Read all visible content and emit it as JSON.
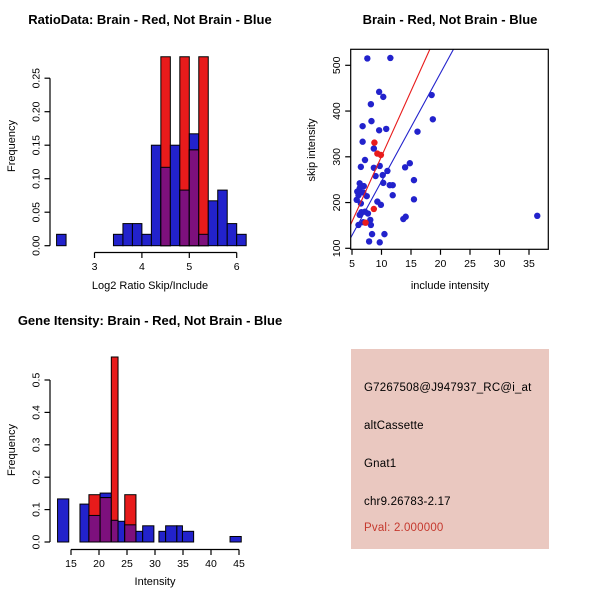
{
  "colors": {
    "blue": "#2222CC",
    "red": "#E81B1B",
    "purple": "#7D107D",
    "black": "#000000",
    "info_background": "#EAC8C0",
    "pval_red": "#C5392E"
  },
  "chart_data": [
    {
      "type": "bar",
      "id": "hist_ratio",
      "title": "RatioData: Brain - Red, Not Brain - Blue",
      "xlabel": "Log2 Ratio Skip/Include",
      "ylabel": "Frequency",
      "xticks": [
        3,
        4,
        5,
        6
      ],
      "ytick_labels": [
        "0.00",
        "0.05",
        "0.10",
        "0.15",
        "0.20",
        "0.25"
      ],
      "ylim": [
        0,
        0.282
      ],
      "series_note": "blue = Not Brain histogram, red = Brain histogram, purple = overlap; red bars with value 0.282 are clipped at plot top",
      "bars_format": "[x_left, x_right, blue_freq, red_freq]",
      "bars": [
        [
          2.2,
          2.4,
          0.017,
          0
        ],
        [
          3.4,
          3.6,
          0.017,
          0
        ],
        [
          3.6,
          3.8,
          0.033,
          0
        ],
        [
          3.8,
          4.0,
          0.033,
          0
        ],
        [
          4.0,
          4.2,
          0.017,
          0
        ],
        [
          4.2,
          4.4,
          0.15,
          0
        ],
        [
          4.4,
          4.6,
          0.117,
          0.282
        ],
        [
          4.6,
          4.8,
          0.15,
          0
        ],
        [
          4.8,
          5.0,
          0.083,
          0.282
        ],
        [
          5.0,
          5.2,
          0.167,
          0.143
        ],
        [
          5.2,
          5.4,
          0.017,
          0.282
        ],
        [
          5.4,
          5.6,
          0.067,
          0
        ],
        [
          5.6,
          5.8,
          0.083,
          0
        ],
        [
          5.8,
          6.0,
          0.033,
          0
        ],
        [
          6.0,
          6.2,
          0.017,
          0
        ]
      ]
    },
    {
      "type": "scatter",
      "id": "scatter",
      "title": "Brain - Red, Not Brain - Blue",
      "xlabel": "include intensity",
      "ylabel": "skip intensity",
      "xticks": [
        5,
        10,
        15,
        20,
        25,
        30,
        35
      ],
      "yticks": [
        100,
        200,
        300,
        400,
        500
      ],
      "xlim": [
        4.78,
        38.3
      ],
      "ylim": [
        98,
        535
      ],
      "blue_points": [
        [
          7.6,
          515
        ],
        [
          11.5,
          516
        ],
        [
          9.6,
          442
        ],
        [
          10.3,
          431
        ],
        [
          18.5,
          435
        ],
        [
          8.2,
          415
        ],
        [
          18.7,
          382
        ],
        [
          8.3,
          378
        ],
        [
          6.8,
          367
        ],
        [
          9.6,
          358
        ],
        [
          10.8,
          361
        ],
        [
          16.1,
          355
        ],
        [
          6.8,
          333
        ],
        [
          8.7,
          318
        ],
        [
          7.2,
          293
        ],
        [
          14.8,
          286
        ],
        [
          6.5,
          278
        ],
        [
          8.7,
          276
        ],
        [
          9.7,
          280
        ],
        [
          14.0,
          277
        ],
        [
          11.0,
          269
        ],
        [
          9.0,
          258
        ],
        [
          10.2,
          260
        ],
        [
          6.3,
          242
        ],
        [
          15.5,
          249
        ],
        [
          7.0,
          236
        ],
        [
          6.3,
          231
        ],
        [
          10.3,
          243
        ],
        [
          11.9,
          238
        ],
        [
          11.4,
          238
        ],
        [
          5.9,
          224
        ],
        [
          6.9,
          222
        ],
        [
          6.1,
          216
        ],
        [
          7.5,
          214
        ],
        [
          11.9,
          216
        ],
        [
          5.8,
          206
        ],
        [
          6.5,
          198
        ],
        [
          9.3,
          202
        ],
        [
          9.9,
          195
        ],
        [
          15.5,
          207
        ],
        [
          7.2,
          180
        ],
        [
          6.6,
          179
        ],
        [
          7.7,
          176
        ],
        [
          6.3,
          173
        ],
        [
          14.1,
          169
        ],
        [
          13.7,
          164
        ],
        [
          6.9,
          157
        ],
        [
          6.1,
          151
        ],
        [
          8.2,
          151
        ],
        [
          8.1,
          162
        ],
        [
          8.4,
          131
        ],
        [
          10.5,
          131
        ],
        [
          7.9,
          115
        ],
        [
          9.7,
          113
        ],
        [
          36.4,
          171
        ]
      ],
      "red_points": [
        [
          8.8,
          331
        ],
        [
          9.3,
          307
        ],
        [
          9.9,
          304
        ],
        [
          8.7,
          186
        ],
        [
          7.3,
          156
        ]
      ],
      "fit_lines": [
        {
          "color": "red",
          "from": [
            4.78,
            152
          ],
          "to": [
            18.2,
            535
          ]
        },
        {
          "color": "blue",
          "from": [
            4.78,
            123
          ],
          "to": [
            22.2,
            535
          ]
        }
      ]
    },
    {
      "type": "bar",
      "id": "hist_gene",
      "title": "Gene Itensity: Brain - Red, Not Brain - Blue",
      "xlabel": "Intensity",
      "ylabel": "Frequency",
      "xticks": [
        15,
        20,
        25,
        30,
        35,
        40,
        45
      ],
      "ytick_labels": [
        "0.0",
        "0.1",
        "0.2",
        "0.3",
        "0.4",
        "0.5"
      ],
      "ylim": [
        0,
        0.58
      ],
      "series_note": "blue = Not Brain histogram, red = Brain histogram, purple = overlap",
      "bars_format": "[x_left, x_right, blue_freq, red_freq]",
      "bars": [
        [
          12.6,
          14.6,
          0.133,
          0
        ],
        [
          16.6,
          18.6,
          0.117,
          0
        ],
        [
          18.2,
          20.2,
          0.082,
          0.146
        ],
        [
          20.2,
          22.2,
          0.151,
          0.137
        ],
        [
          22.2,
          23.4,
          0.067,
          0.571
        ],
        [
          23.4,
          24.6,
          0.064,
          0
        ],
        [
          24.6,
          26.6,
          0.053,
          0.146
        ],
        [
          26.6,
          27.8,
          0.033,
          0
        ],
        [
          27.8,
          29.8,
          0.05,
          0
        ],
        [
          30.7,
          31.9,
          0.033,
          0
        ],
        [
          31.9,
          33.9,
          0.05,
          0
        ],
        [
          33.9,
          34.9,
          0.05,
          0
        ],
        [
          34.9,
          36.9,
          0.033,
          0
        ],
        [
          43.4,
          45.4,
          0.017,
          0
        ]
      ]
    }
  ],
  "panels": {
    "info": {
      "lines": [
        "G7267508@J947937_RC@i_at",
        "altCassette",
        "Gnat1",
        "chr9.26783-2.17"
      ],
      "pval_line": "Pval: 2.000000"
    }
  }
}
